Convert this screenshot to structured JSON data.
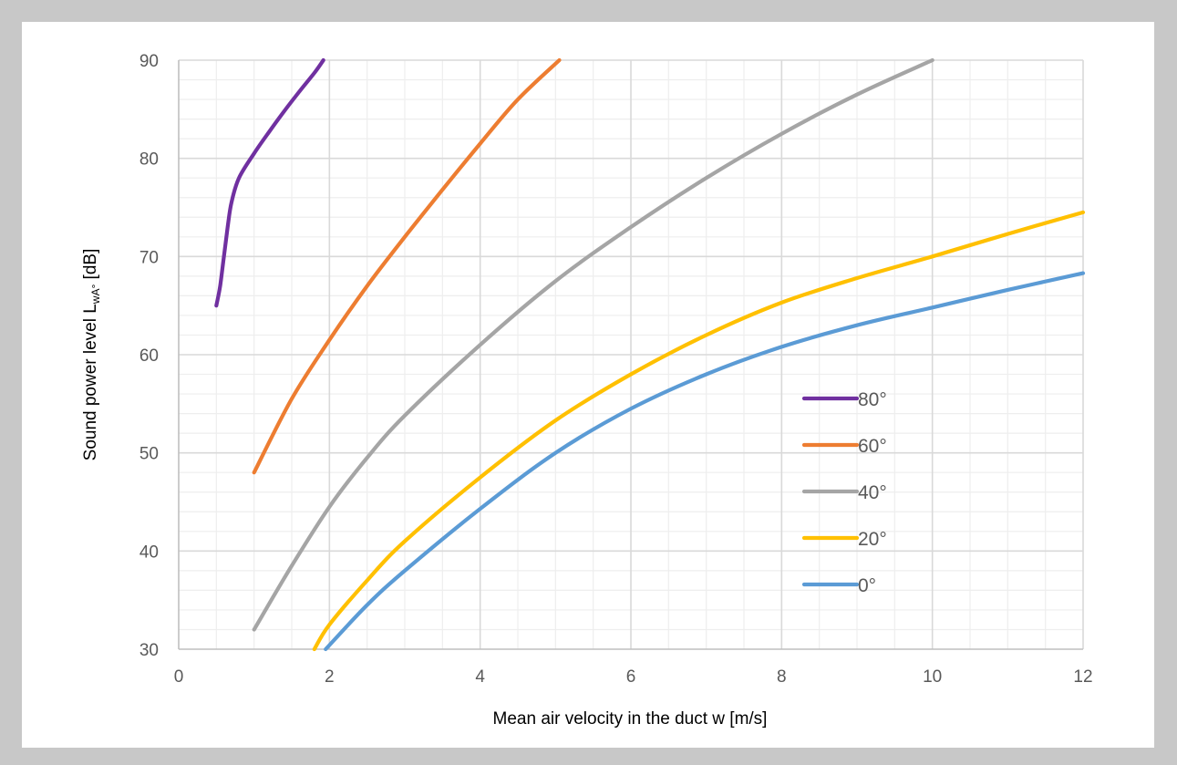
{
  "chart_data": {
    "type": "line",
    "xlabel": "Mean air velocity in the duct w [m/s]",
    "ylabel": {
      "main": "Sound power level L",
      "subscript": "wA°",
      "unit": " [dB]"
    },
    "xlim": [
      0,
      12
    ],
    "ylim": [
      30,
      90
    ],
    "x_ticks": [
      "0",
      "2",
      "4",
      "6",
      "8",
      "10",
      "12"
    ],
    "y_ticks": [
      "30",
      "40",
      "50",
      "60",
      "70",
      "80",
      "90"
    ],
    "grid": {
      "major": true,
      "minor": true
    },
    "legend_position": "right-inside",
    "series": [
      {
        "name": "80°",
        "color": "#7030a0",
        "points": [
          [
            0.5,
            65
          ],
          [
            0.55,
            67
          ],
          [
            0.6,
            70
          ],
          [
            0.65,
            73
          ],
          [
            0.7,
            75.5
          ],
          [
            0.8,
            78
          ],
          [
            1.0,
            80.5
          ],
          [
            1.2,
            82.7
          ],
          [
            1.4,
            84.8
          ],
          [
            1.6,
            86.8
          ],
          [
            1.8,
            88.7
          ],
          [
            1.92,
            90
          ]
        ]
      },
      {
        "name": "60°",
        "color": "#ed7d31",
        "points": [
          [
            1.0,
            48
          ],
          [
            1.5,
            55.5
          ],
          [
            2.0,
            61.5
          ],
          [
            2.5,
            67
          ],
          [
            3.0,
            72
          ],
          [
            3.5,
            76.8
          ],
          [
            4.0,
            81.5
          ],
          [
            4.5,
            86
          ],
          [
            5.05,
            90
          ]
        ]
      },
      {
        "name": "40°",
        "color": "#a5a5a5",
        "points": [
          [
            1.0,
            32
          ],
          [
            1.5,
            38.5
          ],
          [
            2.0,
            44.5
          ],
          [
            2.5,
            49.5
          ],
          [
            3.0,
            53.8
          ],
          [
            4.0,
            61
          ],
          [
            5.0,
            67.5
          ],
          [
            6.0,
            73
          ],
          [
            7.0,
            78
          ],
          [
            8.0,
            82.5
          ],
          [
            9.0,
            86.5
          ],
          [
            10.0,
            90
          ]
        ]
      },
      {
        "name": "20°",
        "color": "#ffc000",
        "points": [
          [
            1.8,
            30
          ],
          [
            2.0,
            32.5
          ],
          [
            2.5,
            37
          ],
          [
            3.0,
            41
          ],
          [
            4.0,
            47.5
          ],
          [
            5.0,
            53.3
          ],
          [
            6.0,
            58
          ],
          [
            7.0,
            62
          ],
          [
            8.0,
            65.3
          ],
          [
            9.0,
            67.8
          ],
          [
            10.0,
            70
          ],
          [
            11.0,
            72.3
          ],
          [
            12.0,
            74.5
          ]
        ]
      },
      {
        "name": "0°",
        "color": "#5b9bd5",
        "points": [
          [
            1.95,
            30
          ],
          [
            2.5,
            34.5
          ],
          [
            3.0,
            38
          ],
          [
            4.0,
            44.3
          ],
          [
            5.0,
            50
          ],
          [
            6.0,
            54.5
          ],
          [
            7.0,
            58
          ],
          [
            8.0,
            60.8
          ],
          [
            9.0,
            63
          ],
          [
            10.0,
            64.8
          ],
          [
            11.0,
            66.6
          ],
          [
            12.0,
            68.3
          ]
        ]
      }
    ]
  }
}
